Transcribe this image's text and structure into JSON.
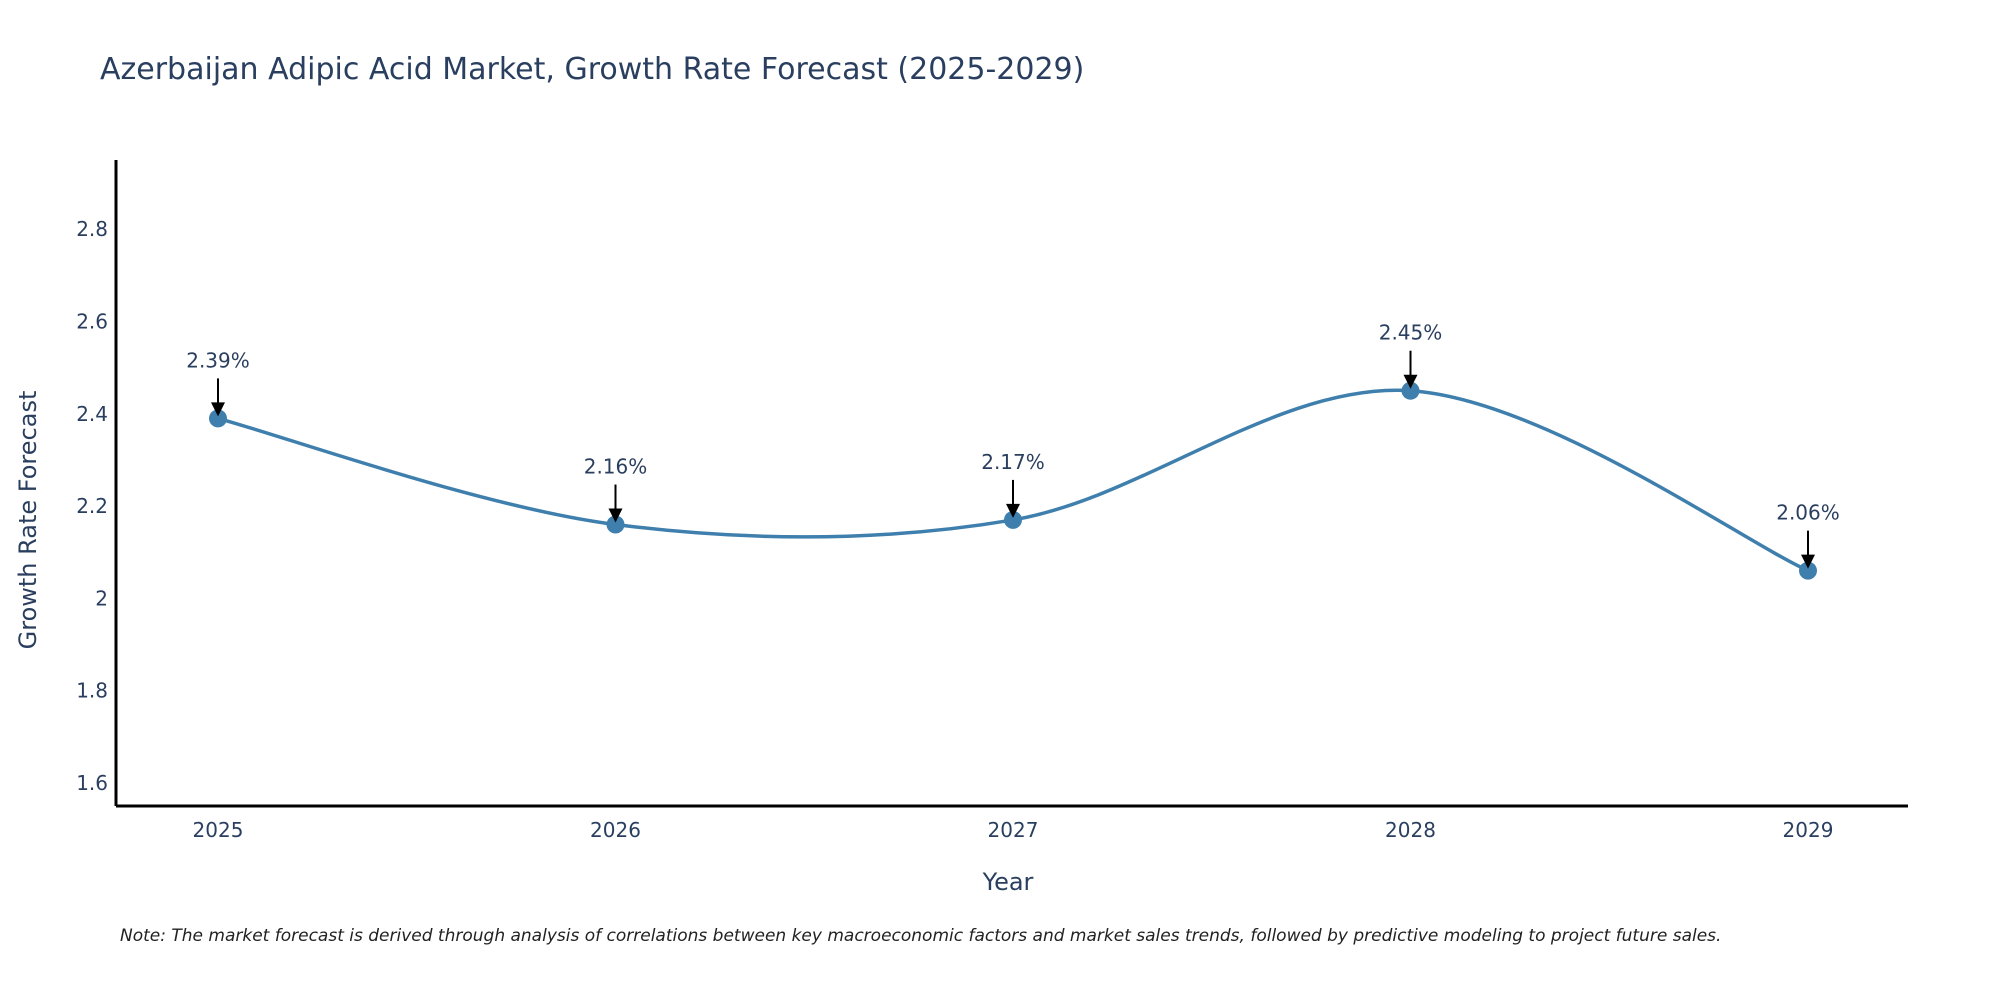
{
  "chart_data": {
    "type": "line",
    "title": "Azerbaijan Adipic Acid Market, Growth Rate Forecast (2025-2029)",
    "xlabel": "Year",
    "ylabel": "Growth Rate Forecast",
    "categories": [
      "2025",
      "2026",
      "2027",
      "2028",
      "2029"
    ],
    "series": [
      {
        "name": "Growth Rate Forecast",
        "values": [
          2.39,
          2.16,
          2.17,
          2.45,
          2.06
        ],
        "color": "#3f7fad"
      }
    ],
    "data_labels": [
      "2.39%",
      "2.16%",
      "2.17%",
      "2.45%",
      "2.06%"
    ],
    "ylim": [
      1.55,
      2.95
    ],
    "yticks": [
      1.6,
      1.8,
      2,
      2.2,
      2.4,
      2.6,
      2.8
    ],
    "ytick_labels": [
      "1.6",
      "1.8",
      "2",
      "2.2",
      "2.4",
      "2.6",
      "2.8"
    ],
    "grid": false,
    "legend": "none"
  },
  "note": "Note: The market forecast is derived through analysis of correlations between key macroeconomic factors and market sales trends, followed by predictive modeling to project future sales."
}
